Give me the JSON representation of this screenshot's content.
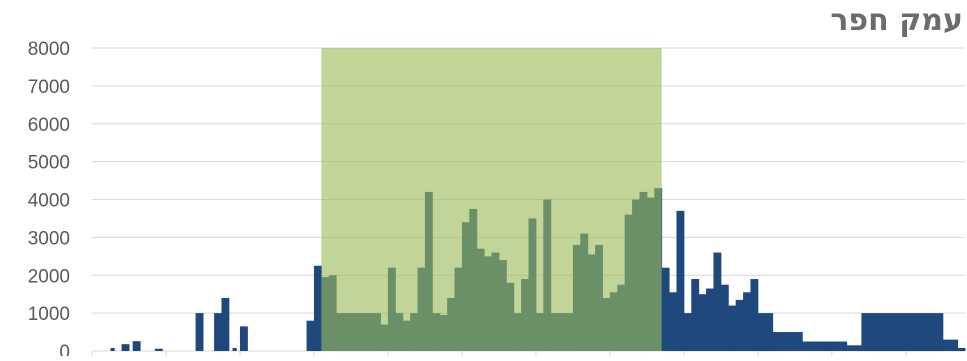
{
  "chart_data": {
    "type": "bar",
    "title": "עמק חפר",
    "xlabel": "",
    "ylabel": "",
    "ylim": [
      0,
      8000
    ],
    "yticks": [
      0,
      1000,
      2000,
      3000,
      4000,
      5000,
      6000,
      7000,
      8000
    ],
    "grid": true,
    "legend": "none",
    "colors": {
      "bars": "#1f497d",
      "highlight": "#9bbb59",
      "gridline": "#d9d9d9",
      "tick_label": "#595959",
      "title": "#6b6b6b"
    },
    "highlight_range": {
      "from_index": 62,
      "to_index": 153
    },
    "values": [
      0,
      0,
      0,
      0,
      0,
      80,
      0,
      0,
      180,
      180,
      0,
      260,
      260,
      0,
      0,
      0,
      0,
      60,
      60,
      0,
      0,
      0,
      0,
      0,
      0,
      0,
      0,
      0,
      1000,
      1000,
      0,
      0,
      0,
      1000,
      1000,
      1400,
      1400,
      0,
      80,
      0,
      650,
      650,
      0,
      0,
      0,
      0,
      0,
      0,
      0,
      0,
      0,
      0,
      0,
      0,
      0,
      0,
      0,
      0,
      800,
      800,
      2250,
      2250,
      1950,
      1950,
      2000,
      2000,
      1000,
      1000,
      1000,
      1000,
      1000,
      1000,
      1000,
      1000,
      1000,
      1000,
      1000,
      1000,
      700,
      700,
      2200,
      2200,
      1000,
      1000,
      800,
      800,
      1000,
      1000,
      2200,
      2200,
      4200,
      4200,
      1000,
      1000,
      950,
      950,
      1400,
      1400,
      2200,
      2200,
      3400,
      3400,
      3750,
      3750,
      2700,
      2700,
      2500,
      2500,
      2600,
      2600,
      2400,
      2400,
      1800,
      1800,
      1000,
      1000,
      1900,
      1900,
      3500,
      3500,
      1000,
      1000,
      4000,
      4000,
      1000,
      1000,
      1000,
      1000,
      1000,
      1000,
      2800,
      2800,
      3100,
      3100,
      2550,
      2550,
      2800,
      2800,
      1400,
      1400,
      1550,
      1550,
      1750,
      1750,
      3600,
      3600,
      4000,
      4000,
      4200,
      4200,
      4050,
      4050,
      4300,
      4300,
      2200,
      2200,
      1550,
      1550,
      3700,
      3700,
      1000,
      1000,
      1900,
      1900,
      1500,
      1500,
      1650,
      1650,
      2600,
      2600,
      1750,
      1750,
      1200,
      1200,
      1350,
      1350,
      1550,
      1550,
      1900,
      1900,
      1000,
      1000,
      1000,
      1000,
      500,
      500,
      500,
      500,
      500,
      500,
      500,
      500,
      250,
      250,
      250,
      250,
      250,
      250,
      250,
      250,
      250,
      250,
      250,
      250,
      150,
      150,
      150,
      150,
      1000,
      1000,
      1000,
      1000,
      1000,
      1000,
      1000,
      1000,
      1000,
      1000,
      1000,
      1000,
      1000,
      1000,
      1000,
      1000,
      1000,
      1000,
      1000,
      1000,
      1000,
      1000,
      300,
      300,
      300,
      300,
      80,
      80
    ]
  }
}
